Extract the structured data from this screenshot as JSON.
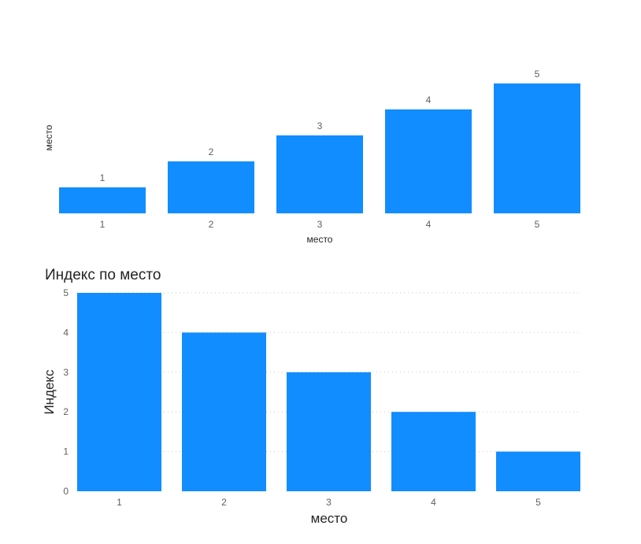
{
  "colors": {
    "bar": "#118dff",
    "text": "#605e5c",
    "title": "#252423"
  },
  "chart_data": [
    {
      "type": "bar",
      "title": "",
      "xlabel": "место",
      "ylabel": "место",
      "categories": [
        "1",
        "2",
        "3",
        "4",
        "5"
      ],
      "values": [
        1,
        2,
        3,
        4,
        5
      ],
      "data_labels": [
        "1",
        "2",
        "3",
        "4",
        "5"
      ],
      "ylim": [
        0,
        5
      ],
      "grid": false,
      "y_axis_ticks": false
    },
    {
      "type": "bar",
      "title": "Индекс по место",
      "xlabel": "место",
      "ylabel": "Индекс",
      "categories": [
        "1",
        "2",
        "3",
        "4",
        "5"
      ],
      "values": [
        5,
        4,
        3,
        2,
        1
      ],
      "y_ticks": [
        "0",
        "1",
        "2",
        "3",
        "4",
        "5"
      ],
      "ylim": [
        0,
        5
      ],
      "grid": true
    }
  ]
}
